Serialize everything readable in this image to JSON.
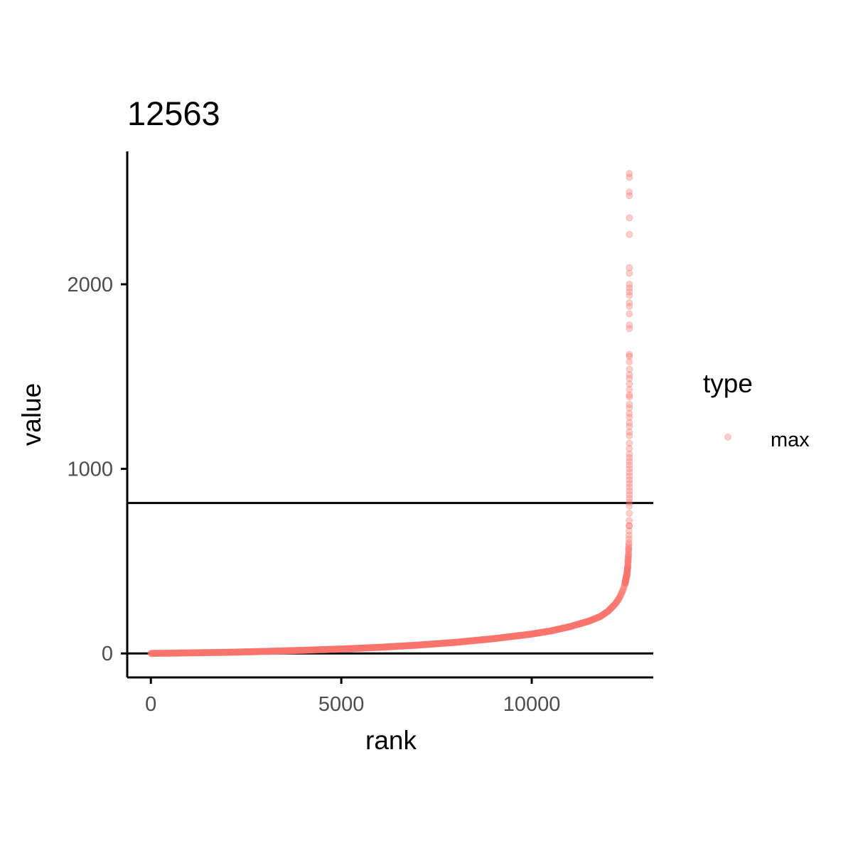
{
  "chart_data": {
    "type": "scatter",
    "title": "12563",
    "xlabel": "rank",
    "ylabel": "value",
    "xlim": [
      -620,
      13190
    ],
    "ylim": [
      -130,
      2720
    ],
    "x_ticks": [
      {
        "value": 0,
        "label": "0"
      },
      {
        "value": 5000,
        "label": "5000"
      },
      {
        "value": 10000,
        "label": "10000"
      }
    ],
    "y_ticks": [
      {
        "value": 0,
        "label": "0"
      },
      {
        "value": 1000,
        "label": "1000"
      },
      {
        "value": 2000,
        "label": "2000"
      }
    ],
    "hlines": [
      0,
      815
    ],
    "legend": {
      "title": "type",
      "placement": "right",
      "entries": [
        {
          "label": "max",
          "color": "#F8766D"
        }
      ]
    },
    "series": [
      {
        "name": "max",
        "color": "#F8766D",
        "alpha": 0.35,
        "n_points": 12563,
        "curve_points": [
          [
            0,
            0
          ],
          [
            1000,
            3
          ],
          [
            2000,
            6
          ],
          [
            3000,
            11
          ],
          [
            4000,
            17
          ],
          [
            5000,
            24
          ],
          [
            6000,
            33
          ],
          [
            7000,
            45
          ],
          [
            8000,
            60
          ],
          [
            9000,
            80
          ],
          [
            10000,
            105
          ],
          [
            10500,
            122
          ],
          [
            11000,
            145
          ],
          [
            11500,
            175
          ],
          [
            11800,
            200
          ],
          [
            12000,
            228
          ],
          [
            12200,
            270
          ],
          [
            12300,
            300
          ],
          [
            12400,
            345
          ],
          [
            12450,
            380
          ],
          [
            12500,
            430
          ],
          [
            12520,
            470
          ],
          [
            12540,
            540
          ],
          [
            12550,
            600
          ],
          [
            12555,
            650
          ],
          [
            12560,
            720
          ],
          [
            12563,
            780
          ]
        ],
        "top_values": [
          800,
          820,
          840,
          860,
          880,
          900,
          920,
          940,
          960,
          980,
          1000,
          1020,
          1040,
          1060,
          1080,
          1110,
          1140,
          1180,
          1200,
          1230,
          1250,
          1280,
          1300,
          1330,
          1350,
          1390,
          1400,
          1430,
          1460,
          1490,
          1510,
          1540,
          1580,
          1610,
          1620,
          1760,
          1780,
          1840,
          1880,
          1900,
          1940,
          1960,
          1980,
          2000,
          2060,
          2090,
          2270,
          2360,
          2480,
          2500,
          2580,
          2600
        ]
      }
    ]
  }
}
